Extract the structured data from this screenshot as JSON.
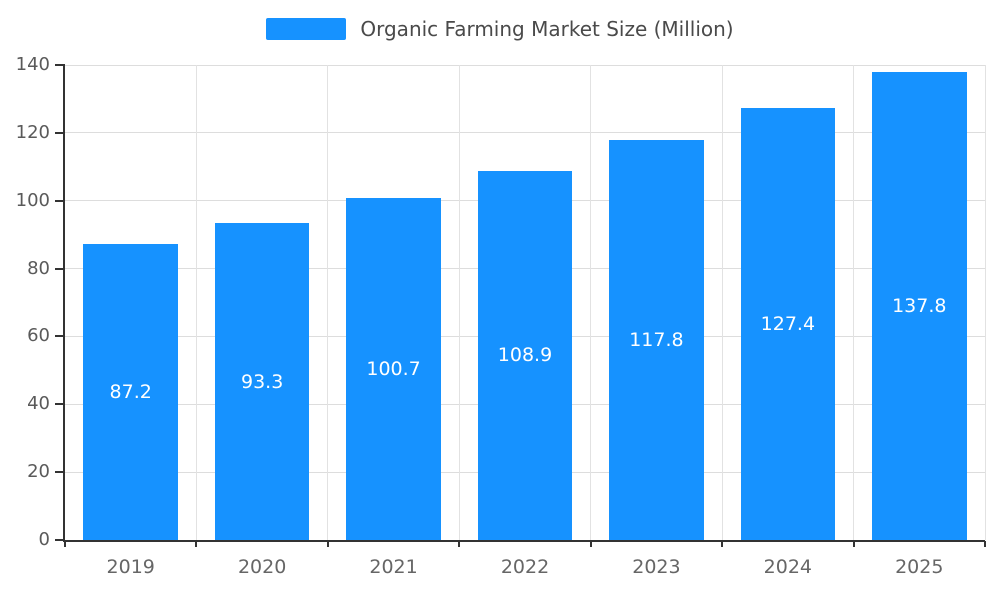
{
  "chart_data": {
    "type": "bar",
    "title": "Organic Farming Market Size (Million)",
    "categories": [
      "2019",
      "2020",
      "2021",
      "2022",
      "2023",
      "2024",
      "2025"
    ],
    "values": [
      87.2,
      93.3,
      100.7,
      108.9,
      117.8,
      127.4,
      137.8
    ],
    "xlabel": "",
    "ylabel": "",
    "ylim": [
      0,
      140
    ],
    "yticks": [
      0,
      20,
      40,
      60,
      80,
      100,
      120,
      140
    ],
    "grid": true,
    "legend_position": "top-center",
    "bar_color": "#1692ff",
    "value_label_color": "#ffffff",
    "axis_color": "#333333",
    "tick_label_color": "#5a5a5a"
  }
}
